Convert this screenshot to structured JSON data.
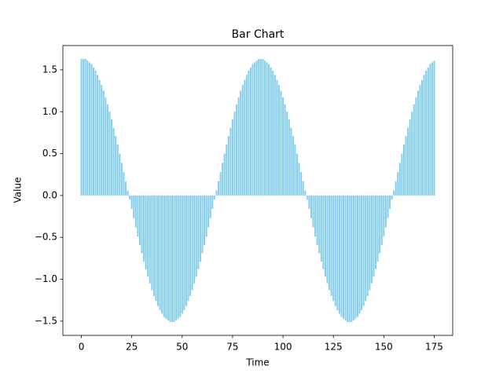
{
  "chart_data": {
    "type": "bar",
    "title": "Bar Chart",
    "x_label": "Time",
    "y_label": "Value",
    "color": "#87ceeb",
    "x": [
      0,
      1,
      2,
      3,
      4,
      5,
      6,
      7,
      8,
      9,
      10,
      11,
      12,
      13,
      14,
      15,
      16,
      17,
      18,
      19,
      20,
      21,
      22,
      23,
      24,
      25,
      26,
      27,
      28,
      29,
      30,
      31,
      32,
      33,
      34,
      35,
      36,
      37,
      38,
      39,
      40,
      41,
      42,
      43,
      44,
      45,
      46,
      47,
      48,
      49,
      50,
      51,
      52,
      53,
      54,
      55,
      56,
      57,
      58,
      59,
      60,
      61,
      62,
      63,
      64,
      65,
      66,
      67,
      68,
      69,
      70,
      71,
      72,
      73,
      74,
      75,
      76,
      77,
      78,
      79,
      80,
      81,
      82,
      83,
      84,
      85,
      86,
      87,
      88,
      89,
      90,
      91,
      92,
      93,
      94,
      95,
      96,
      97,
      98,
      99,
      100,
      101,
      102,
      103,
      104,
      105,
      106,
      107,
      108,
      109,
      110,
      111,
      112,
      113,
      114,
      115,
      116,
      117,
      118,
      119,
      120,
      121,
      122,
      123,
      124,
      125,
      126,
      127,
      128,
      129,
      130,
      131,
      132,
      133,
      134,
      135,
      136,
      137,
      138,
      139,
      140,
      141,
      142,
      143,
      144,
      145,
      146,
      147,
      148,
      149,
      150,
      151,
      152,
      153,
      154,
      155,
      156,
      157,
      158,
      159,
      160,
      161,
      162,
      163,
      164,
      165,
      166,
      167,
      168,
      169,
      170,
      171,
      172,
      173,
      174,
      175
    ],
    "values": [
      1.63,
      1.63,
      1.63,
      1.61,
      1.59,
      1.57,
      1.53,
      1.49,
      1.44,
      1.38,
      1.32,
      1.25,
      1.17,
      1.09,
      1.0,
      0.91,
      0.81,
      0.71,
      0.61,
      0.5,
      0.39,
      0.28,
      0.17,
      0.06,
      -0.05,
      -0.16,
      -0.27,
      -0.38,
      -0.49,
      -0.59,
      -0.69,
      -0.79,
      -0.88,
      -0.97,
      -1.05,
      -1.13,
      -1.2,
      -1.26,
      -1.32,
      -1.37,
      -1.41,
      -1.45,
      -1.47,
      -1.49,
      -1.51,
      -1.51,
      -1.51,
      -1.49,
      -1.47,
      -1.45,
      -1.41,
      -1.37,
      -1.32,
      -1.26,
      -1.2,
      -1.13,
      -1.05,
      -0.97,
      -0.88,
      -0.79,
      -0.69,
      -0.59,
      -0.49,
      -0.38,
      -0.27,
      -0.16,
      -0.05,
      0.06,
      0.17,
      0.28,
      0.39,
      0.5,
      0.61,
      0.71,
      0.81,
      0.91,
      1.0,
      1.09,
      1.17,
      1.25,
      1.32,
      1.38,
      1.44,
      1.49,
      1.53,
      1.57,
      1.59,
      1.61,
      1.63,
      1.63,
      1.63,
      1.61,
      1.59,
      1.57,
      1.53,
      1.49,
      1.44,
      1.38,
      1.32,
      1.25,
      1.17,
      1.09,
      1.0,
      0.91,
      0.81,
      0.71,
      0.61,
      0.5,
      0.39,
      0.28,
      0.17,
      0.06,
      -0.05,
      -0.16,
      -0.27,
      -0.38,
      -0.49,
      -0.59,
      -0.69,
      -0.79,
      -0.88,
      -0.97,
      -1.05,
      -1.13,
      -1.2,
      -1.26,
      -1.32,
      -1.37,
      -1.41,
      -1.45,
      -1.47,
      -1.49,
      -1.51,
      -1.51,
      -1.51,
      -1.49,
      -1.47,
      -1.45,
      -1.41,
      -1.37,
      -1.32,
      -1.26,
      -1.2,
      -1.13,
      -1.05,
      -0.97,
      -0.88,
      -0.79,
      -0.69,
      -0.59,
      -0.49,
      -0.38,
      -0.27,
      -0.16,
      -0.05,
      0.06,
      0.17,
      0.28,
      0.39,
      0.5,
      0.61,
      0.71,
      0.81,
      0.91,
      1.0,
      1.09,
      1.17,
      1.25,
      1.32,
      1.38,
      1.44,
      1.49,
      1.53,
      1.57,
      1.59,
      1.61
    ],
    "xlim": [
      -9.19,
      184.19
    ],
    "xticks": [
      0,
      25,
      50,
      75,
      100,
      125,
      150,
      175
    ],
    "ylim": [
      -1.67,
      1.79
    ],
    "yticks": [
      {
        "value": -1.5,
        "label": "−1.5"
      },
      {
        "value": -1,
        "label": "−1.0"
      },
      {
        "value": -0.5,
        "label": "−0.5"
      },
      {
        "value": 0,
        "label": "0.0"
      },
      0.5,
      {
        "value": 1,
        "label": "1.0"
      },
      1.5
    ]
  }
}
